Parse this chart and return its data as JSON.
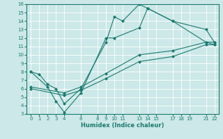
{
  "title": "",
  "xlabel": "Humidex (Indice chaleur)",
  "bg_color": "#cce8e8",
  "line_color": "#1a7a6e",
  "xlim": [
    -0.5,
    22.5
  ],
  "ylim": [
    3,
    16
  ],
  "xticks": [
    0,
    1,
    2,
    3,
    4,
    6,
    8,
    9,
    10,
    11,
    13,
    14,
    15,
    17,
    18,
    19,
    21,
    22
  ],
  "yticks": [
    3,
    4,
    5,
    6,
    7,
    8,
    9,
    10,
    11,
    12,
    13,
    14,
    15,
    16
  ],
  "lines": [
    {
      "x": [
        0,
        1,
        2,
        3,
        4,
        6,
        9,
        10,
        11,
        13,
        14,
        17,
        21,
        22
      ],
      "y": [
        8,
        7.7,
        6.5,
        6.0,
        4.2,
        6.0,
        11.5,
        14.5,
        14.0,
        16.0,
        15.5,
        14.0,
        13.0,
        11.5
      ]
    },
    {
      "x": [
        0,
        2,
        3,
        4,
        6,
        9,
        10,
        13,
        14,
        17,
        21,
        22
      ],
      "y": [
        8,
        6.2,
        4.5,
        3.2,
        5.5,
        12.0,
        12.0,
        13.2,
        15.5,
        14.0,
        11.5,
        11.2
      ]
    },
    {
      "x": [
        0,
        4,
        6,
        9,
        13,
        17,
        21,
        22
      ],
      "y": [
        6.2,
        5.5,
        6.2,
        7.8,
        10.0,
        10.5,
        11.5,
        11.5
      ]
    },
    {
      "x": [
        0,
        4,
        6,
        9,
        13,
        17,
        21,
        22
      ],
      "y": [
        6.0,
        5.2,
        5.8,
        7.2,
        9.2,
        9.8,
        11.2,
        11.2
      ]
    }
  ]
}
